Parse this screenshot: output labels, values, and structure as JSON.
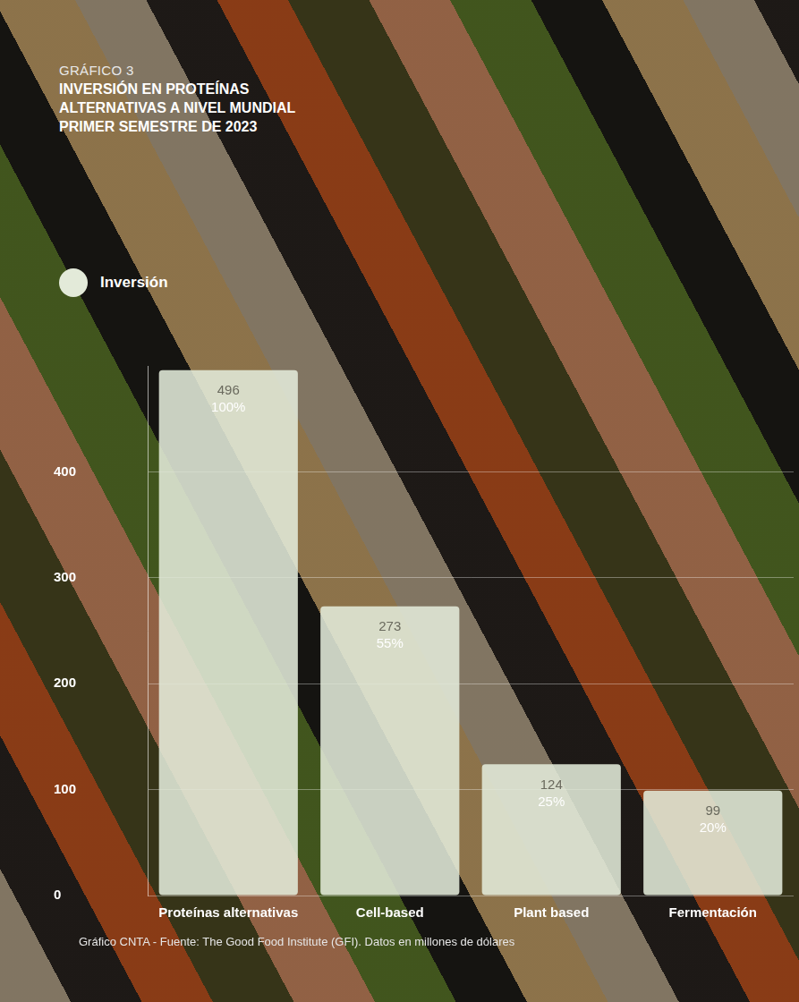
{
  "chart_data": {
    "type": "bar",
    "chart_label": "GRÁFICO 3",
    "title": "INVERSIÓN EN PROTEÍNAS ALTERNATIVAS A NIVEL MUNDIAL PRIMER SEMESTRE DE 2023",
    "categories": [
      "Proteínas alternativas",
      "Cell-based",
      "Plant based",
      "Fermentación"
    ],
    "series": [
      {
        "name": "Inversión",
        "color": "#e3ead9",
        "values": [
          496,
          273,
          124,
          99
        ]
      }
    ],
    "percent_labels": [
      "100%",
      "55%",
      "25%",
      "20%"
    ],
    "ylim": [
      0,
      500
    ],
    "yticks": [
      0,
      100,
      200,
      300,
      400
    ],
    "grid": true,
    "legend": "top-left",
    "data_labels": true,
    "source": "Gráfico CNTA - Fuente: The Good Food Institute (GFI). Datos en millones de dólares"
  }
}
